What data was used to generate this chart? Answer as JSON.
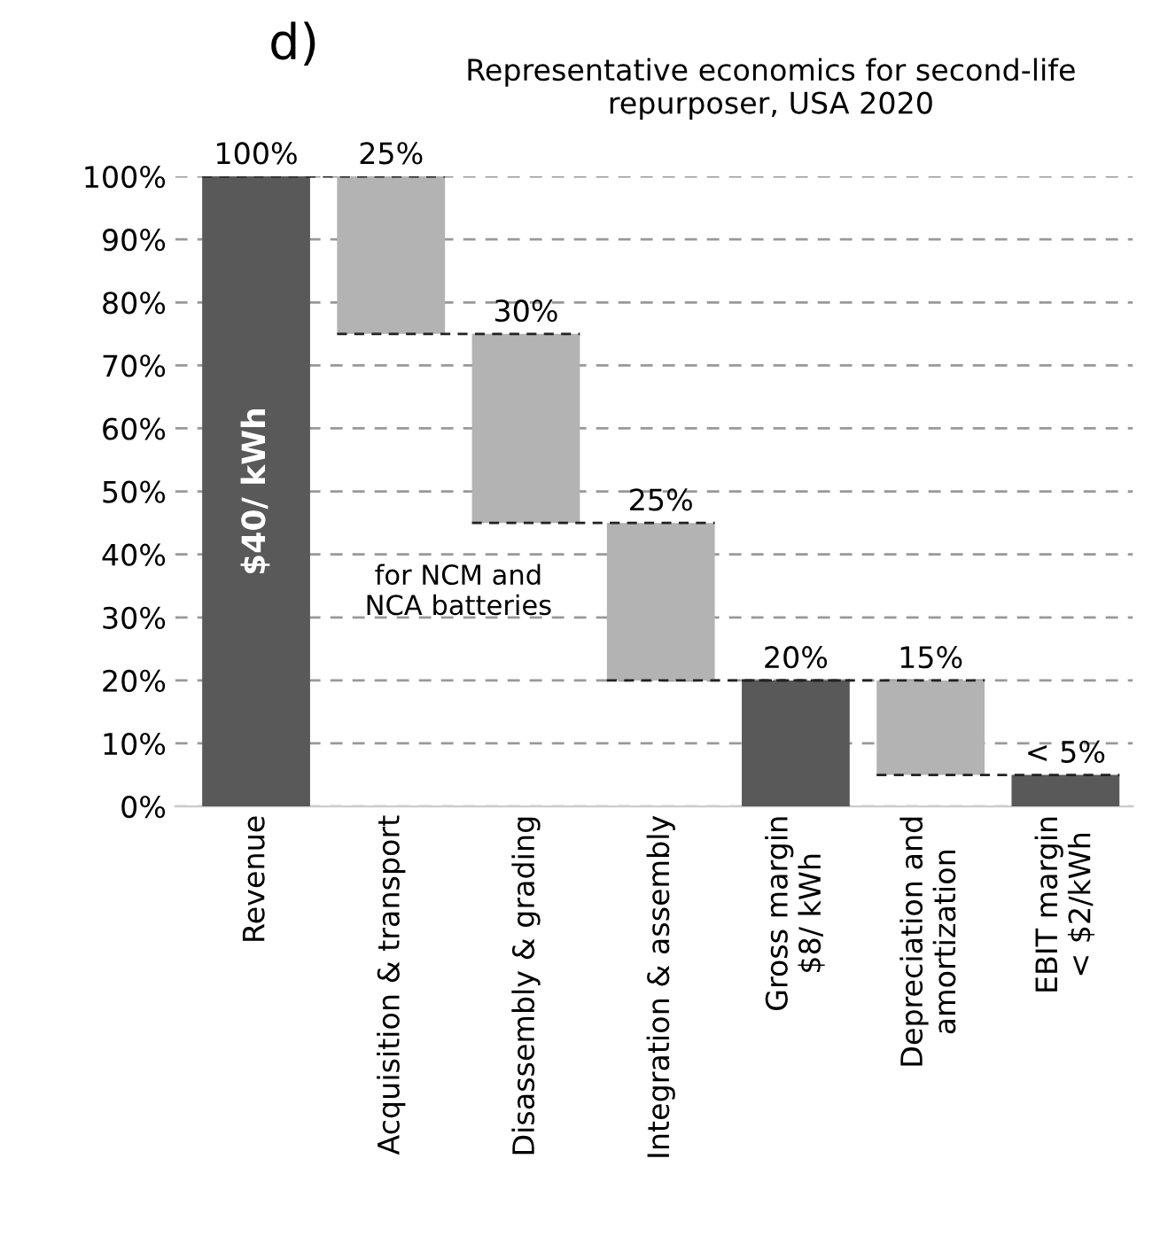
{
  "chart_data": {
    "type": "bar",
    "title": "Representative economics for second-life\nrepurposer, USA 2020",
    "categories": [
      "Revenue",
      "Acquisition & transport",
      "Disassembly & grading",
      "Integration & assembly",
      "Gross margin\n$8/ kWh",
      "Depreciation and\namortization",
      "EBIT margin\n< $2/kWh"
    ],
    "values": [
      100,
      25,
      30,
      25,
      20,
      15,
      5
    ],
    "base": [
      0,
      75,
      45,
      20,
      0,
      5,
      0
    ],
    "colors": [
      "#595959",
      "#b3b3b3",
      "#b3b3b3",
      "#b3b3b3",
      "#595959",
      "#b3b3b3",
      "#595959"
    ],
    "value_labels": [
      "100%",
      "25%",
      "30%",
      "25%",
      "20%",
      "15%",
      "< 5%"
    ],
    "ylim": [
      0,
      100
    ],
    "yticks": [
      {
        "value": 0,
        "label": "0%"
      },
      {
        "value": 10,
        "label": "10%"
      },
      {
        "value": 20,
        "label": "20%"
      },
      {
        "value": 30,
        "label": "30%"
      },
      {
        "value": 40,
        "label": "40%"
      },
      {
        "value": 50,
        "label": "50%"
      },
      {
        "value": 60,
        "label": "60%"
      },
      {
        "value": 70,
        "label": "70%"
      },
      {
        "value": 80,
        "label": "80%"
      },
      {
        "value": 90,
        "label": "90%"
      },
      {
        "value": 100,
        "label": "100%"
      }
    ],
    "grid": "y",
    "annotations": [
      "d)",
      "for NCM and\nNCA batteries",
      "$40/ kWh"
    ]
  }
}
